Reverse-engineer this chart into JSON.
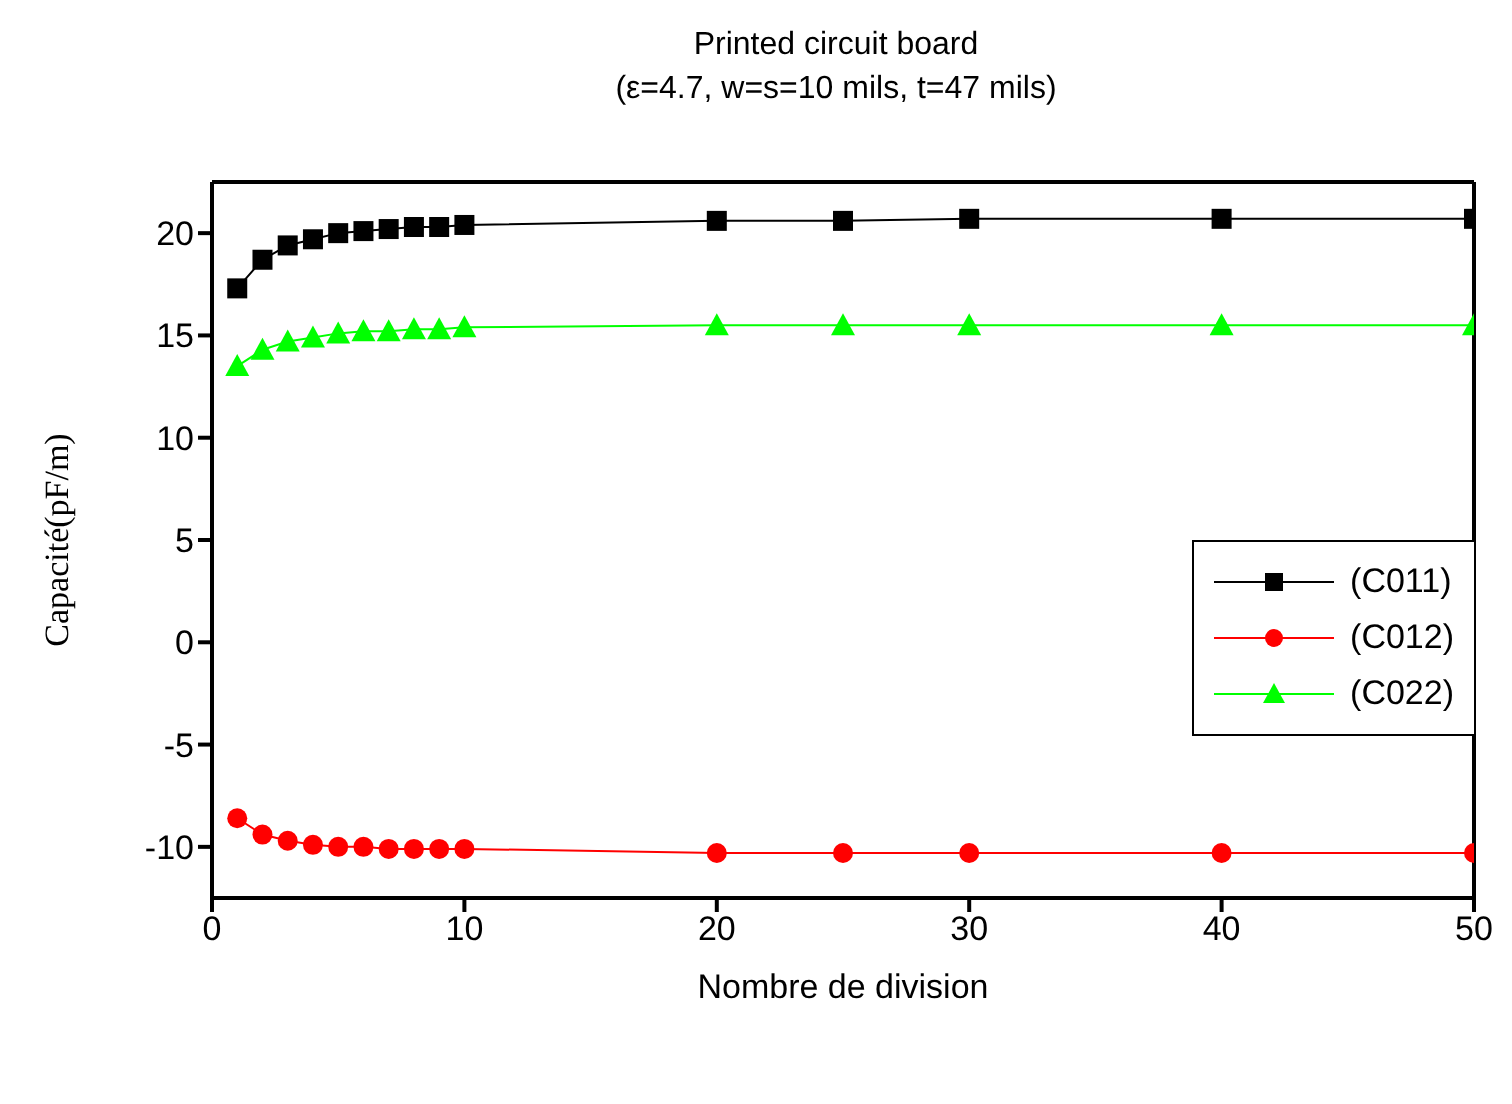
{
  "chart_data": {
    "type": "line",
    "title": "Printed circuit board",
    "subtitle": "(ε=4.7, w=s=10 mils, t=47 mils)",
    "xlabel": "Nombre de division",
    "ylabel": "Capacité(pF/m)",
    "x": [
      1,
      2,
      3,
      4,
      5,
      6,
      7,
      8,
      9,
      10,
      20,
      25,
      30,
      40,
      50
    ],
    "series": [
      {
        "name": "(C011)",
        "color": "#000000",
        "marker": "square",
        "values": [
          17.3,
          18.7,
          19.4,
          19.7,
          20.0,
          20.1,
          20.2,
          20.3,
          20.3,
          20.4,
          20.6,
          20.6,
          20.7,
          20.7,
          20.7
        ]
      },
      {
        "name": "(C012)",
        "color": "#ff0000",
        "marker": "circle",
        "values": [
          -8.6,
          -9.4,
          -9.7,
          -9.9,
          -10.0,
          -10.0,
          -10.1,
          -10.1,
          -10.1,
          -10.1,
          -10.3,
          -10.3,
          -10.3,
          -10.3,
          -10.3
        ]
      },
      {
        "name": "(C022)",
        "color": "#00ff00",
        "marker": "triangle",
        "values": [
          13.5,
          14.3,
          14.7,
          14.9,
          15.1,
          15.2,
          15.2,
          15.3,
          15.3,
          15.4,
          15.5,
          15.5,
          15.5,
          15.5,
          15.5
        ]
      }
    ],
    "xlim": [
      0,
      50
    ],
    "xticks": [
      0,
      10,
      20,
      30,
      40,
      50
    ],
    "ylim": [
      -12.5,
      22.5
    ],
    "yticks": [
      -10,
      -5,
      0,
      5,
      10,
      15,
      20
    ],
    "grid": false,
    "legend": "right",
    "line_style": "solid"
  }
}
